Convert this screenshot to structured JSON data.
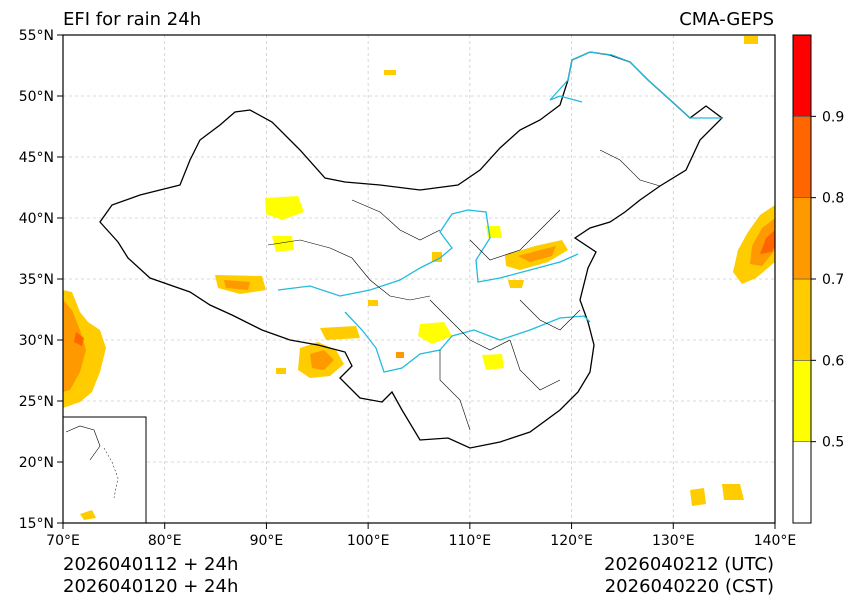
{
  "header": {
    "title_left": "EFI for rain 24h",
    "title_right": "CMA-GEPS"
  },
  "footer": {
    "init_utc": "2026040112 + 24h",
    "init_cst": "2026040120 + 24h",
    "valid_utc": "2026040212 (UTC)",
    "valid_cst": "2026040220 (CST)"
  },
  "map": {
    "lon_ticks": [
      "70°E",
      "80°E",
      "90°E",
      "100°E",
      "110°E",
      "120°E",
      "130°E",
      "140°E"
    ],
    "lat_ticks": [
      "55°N",
      "50°N",
      "45°N",
      "40°N",
      "35°N",
      "30°N",
      "25°N",
      "20°N",
      "15°N"
    ],
    "lon_range": [
      70,
      140
    ],
    "lat_range": [
      15,
      55
    ],
    "grid": true
  },
  "colorbar": {
    "levels": [
      0.4,
      0.5,
      0.6,
      0.7,
      0.8,
      0.9,
      1.0
    ],
    "colors": [
      "#ffffff",
      "#ffff00",
      "#ffcc00",
      "#ff9900",
      "#ff6600",
      "#ff0000"
    ],
    "labels": [
      "0.5",
      "0.6",
      "0.7",
      "0.8",
      "0.9"
    ]
  },
  "palette": {
    "river": "#22bbdd",
    "border": "#000000",
    "grid": "#cccccc"
  }
}
